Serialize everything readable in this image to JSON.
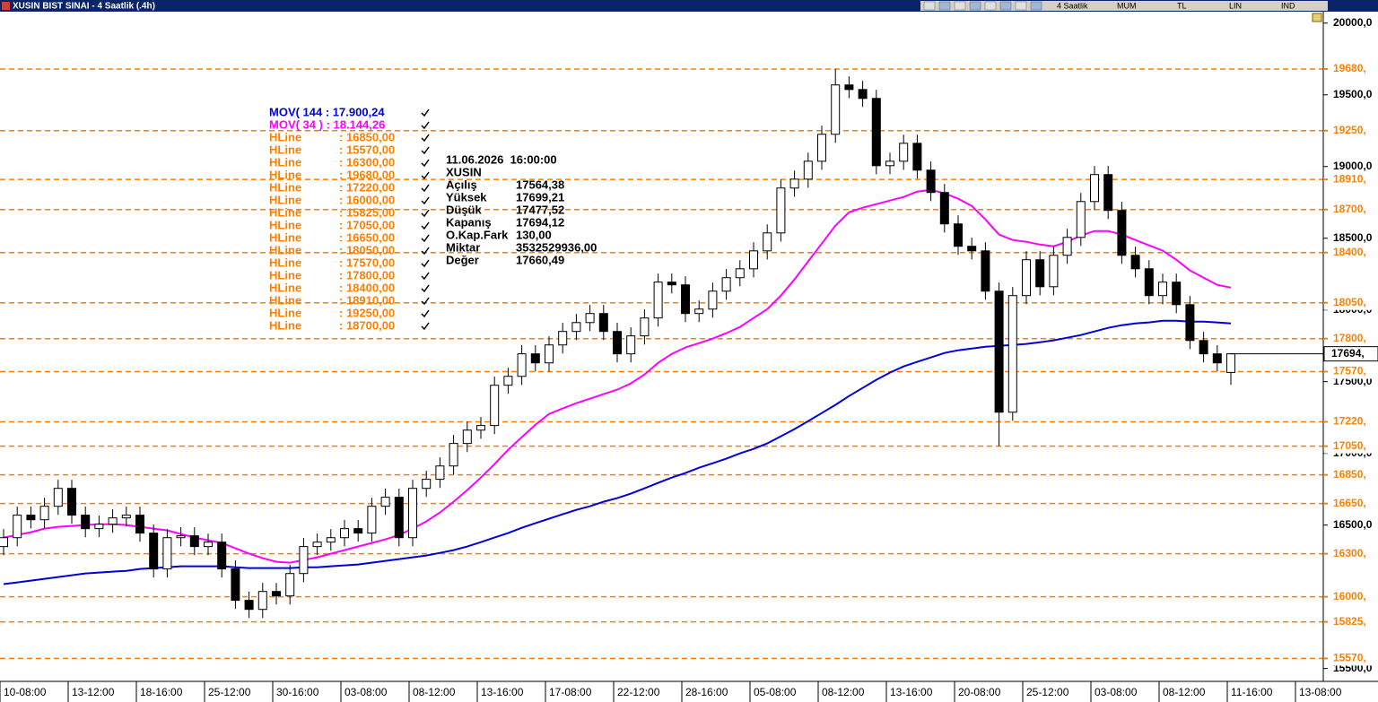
{
  "window": {
    "title": "XUSIN BIST SINAI - 4 Saatlik (.4h)",
    "toolbar": [
      "4 Saatlik",
      "MUM",
      "TL",
      "LIN",
      "IND"
    ]
  },
  "info_panel": {
    "datetime": "11.06.2026  16:00:00",
    "symbol": "XUSIN",
    "rows": [
      [
        "Açılış",
        "17564,38"
      ],
      [
        "Yüksek",
        "17699,21"
      ],
      [
        "Düşük",
        "17477,52"
      ],
      [
        "Kapanış",
        "17694,12"
      ],
      [
        "O.Kap.Fark",
        "130,00"
      ],
      [
        "Miktar",
        "3532529936,00"
      ],
      [
        "Değer",
        "17660,49"
      ]
    ]
  },
  "chart_data": {
    "type": "candlestick",
    "categories": [
      "10-08:00",
      null,
      null,
      null,
      null,
      "13-12:00",
      null,
      null,
      null,
      null,
      "18-16:00",
      null,
      null,
      null,
      null,
      "25-12:00",
      null,
      null,
      null,
      null,
      "30-16:00",
      null,
      null,
      null,
      null,
      "03-08:00",
      null,
      null,
      null,
      null,
      "08-12:00",
      null,
      null,
      null,
      null,
      "13-16:00",
      null,
      null,
      null,
      null,
      "17-08:00",
      null,
      null,
      null,
      null,
      "22-12:00",
      null,
      null,
      null,
      null,
      "28-16:00",
      null,
      null,
      null,
      null,
      "05-08:00",
      null,
      null,
      null,
      null,
      "08-12:00",
      null,
      null,
      null,
      null,
      "13-16:00",
      null,
      null,
      null,
      null,
      "20-08:00",
      null,
      null,
      null,
      null,
      "25-12:00",
      null,
      null,
      null,
      null,
      "03-08:00",
      null,
      null,
      null,
      null,
      "08-12:00",
      null,
      null,
      null,
      null,
      "11-16:00",
      null,
      null,
      null,
      null,
      "13-08:00"
    ],
    "open": [
      16350,
      16412,
      16569,
      16537,
      16631,
      16756,
      16569,
      16475,
      16506,
      16550,
      16569,
      16444,
      16194,
      16412,
      16425,
      16350,
      16381,
      16194,
      15975,
      15912,
      16037,
      16006,
      16162,
      16350,
      16381,
      16412,
      16475,
      16444,
      16631,
      16694,
      16412,
      16756,
      16819,
      16912,
      17069,
      17162,
      17194,
      17475,
      17537,
      17694,
      17631,
      17756,
      17850,
      17912,
      17975,
      17850,
      17694,
      17819,
      17944,
      18194,
      18175,
      17975,
      18006,
      18131,
      18225,
      18287,
      18412,
      18537,
      18850,
      18912,
      19037,
      19225,
      19569,
      19537,
      19475,
      19006,
      19037,
      19162,
      18975,
      18819,
      18600,
      18444,
      18412,
      18131,
      17287,
      18100,
      18350,
      18162,
      18381,
      18506,
      18756,
      18944,
      18694,
      18381,
      18287,
      18100,
      18194,
      18037,
      17787,
      17694,
      17564.38,
      null,
      null,
      null,
      null,
      null
    ],
    "high": [
      16472,
      16629,
      16629,
      16691,
      16816,
      16816,
      16629,
      16566,
      16610,
      16629,
      16629,
      16504,
      16472,
      16485,
      16485,
      16441,
      16441,
      16254,
      16035,
      16097,
      16097,
      16222,
      16410,
      16441,
      16472,
      16535,
      16535,
      16691,
      16754,
      16754,
      16816,
      16879,
      16972,
      17129,
      17222,
      17254,
      17535,
      17597,
      17754,
      17754,
      17816,
      17910,
      17972,
      18035,
      18035,
      17910,
      17879,
      18004,
      18254,
      18254,
      18235,
      18066,
      18191,
      18285,
      18347,
      18472,
      18597,
      18910,
      18972,
      19097,
      19285,
      19680,
      19629,
      19597,
      19535,
      19097,
      19222,
      19222,
      19035,
      18879,
      18660,
      18504,
      18472,
      18191,
      18160,
      18410,
      18410,
      18441,
      18566,
      18816,
      19004,
      19004,
      18754,
      18441,
      18347,
      18254,
      18254,
      18097,
      17847,
      17754,
      17699.21,
      null,
      null,
      null,
      null,
      null
    ],
    "low": [
      16290,
      16352,
      16477,
      16477,
      16571,
      16509,
      16415,
      16415,
      16446,
      16490,
      16384,
      16134,
      16134,
      16352,
      16290,
      16290,
      16134,
      15915,
      15852,
      15852,
      15946,
      15946,
      16102,
      16290,
      16321,
      16352,
      16384,
      16384,
      16571,
      16352,
      16352,
      16696,
      16759,
      16852,
      17009,
      17102,
      17134,
      17415,
      17477,
      17571,
      17571,
      17696,
      17790,
      17852,
      17790,
      17634,
      17634,
      17759,
      17884,
      18115,
      17915,
      17915,
      17946,
      18071,
      18165,
      18227,
      18352,
      18477,
      18790,
      18852,
      18977,
      19165,
      19477,
      19415,
      18946,
      18946,
      18977,
      18915,
      18759,
      18540,
      18384,
      18352,
      18071,
      17050,
      17227,
      18040,
      18102,
      18102,
      18321,
      18446,
      18696,
      18634,
      18321,
      18227,
      18040,
      18040,
      17977,
      17727,
      17634,
      17571,
      17477.52,
      null,
      null,
      null,
      null,
      null
    ],
    "close": [
      16412,
      16569,
      16537,
      16631,
      16756,
      16569,
      16475,
      16506,
      16550,
      16569,
      16444,
      16194,
      16412,
      16425,
      16350,
      16381,
      16194,
      15975,
      15912,
      16037,
      16006,
      16162,
      16350,
      16381,
      16412,
      16475,
      16444,
      16631,
      16694,
      16412,
      16756,
      16819,
      16912,
      17069,
      17162,
      17194,
      17475,
      17537,
      17694,
      17631,
      17756,
      17850,
      17912,
      17975,
      17850,
      17694,
      17819,
      17944,
      18194,
      18175,
      17975,
      18006,
      18131,
      18225,
      18287,
      18412,
      18537,
      18850,
      18912,
      19037,
      19225,
      19569,
      19537,
      19475,
      19006,
      19037,
      19162,
      18975,
      18819,
      18600,
      18444,
      18412,
      18131,
      17287,
      18100,
      18350,
      18162,
      18381,
      18506,
      18756,
      18944,
      18694,
      18381,
      18287,
      18100,
      18194,
      18037,
      17787,
      17694,
      17631,
      17694.12,
      null,
      null,
      null,
      null,
      null
    ],
    "series": [
      {
        "name": "MOV( 144 : 17.900,24",
        "color": "#0000dd",
        "values": [
          16088,
          16100,
          16113,
          16125,
          16138,
          16150,
          16163,
          16169,
          16175,
          16181,
          16194,
          16200,
          16206,
          16213,
          16213,
          16213,
          16213,
          16206,
          16200,
          16200,
          16200,
          16200,
          16206,
          16206,
          16213,
          16219,
          16225,
          16238,
          16250,
          16263,
          16275,
          16288,
          16306,
          16325,
          16350,
          16381,
          16413,
          16444,
          16481,
          16513,
          16544,
          16575,
          16606,
          16631,
          16663,
          16688,
          16719,
          16756,
          16794,
          16831,
          16863,
          16900,
          16931,
          16963,
          17000,
          17031,
          17069,
          17119,
          17169,
          17225,
          17281,
          17338,
          17400,
          17456,
          17513,
          17563,
          17606,
          17638,
          17669,
          17700,
          17719,
          17731,
          17744,
          17750,
          17756,
          17763,
          17775,
          17788,
          17806,
          17825,
          17850,
          17875,
          17894,
          17906,
          17913,
          17925,
          17925,
          17919,
          17919,
          17913,
          17906,
          null,
          null,
          null,
          null,
          null
        ]
      },
      {
        "name": "MOV( 34 ) : 18.144,26",
        "color": "#ff00ff",
        "values": [
          16413,
          16431,
          16450,
          16475,
          16488,
          16494,
          16500,
          16506,
          16506,
          16500,
          16488,
          16475,
          16463,
          16438,
          16413,
          16394,
          16375,
          16338,
          16300,
          16269,
          16244,
          16238,
          16256,
          16275,
          16300,
          16325,
          16350,
          16375,
          16400,
          16431,
          16475,
          16525,
          16588,
          16663,
          16744,
          16831,
          16925,
          17025,
          17113,
          17200,
          17275,
          17313,
          17350,
          17381,
          17413,
          17444,
          17488,
          17550,
          17631,
          17694,
          17738,
          17769,
          17800,
          17838,
          17881,
          17944,
          18006,
          18100,
          18213,
          18338,
          18463,
          18588,
          18681,
          18713,
          18738,
          18763,
          18788,
          18825,
          18838,
          18813,
          18775,
          18725,
          18631,
          18525,
          18488,
          18475,
          18456,
          18444,
          18475,
          18519,
          18550,
          18550,
          18525,
          18488,
          18450,
          18413,
          18350,
          18275,
          18225,
          18175,
          18156,
          null,
          null,
          null,
          null,
          null
        ]
      }
    ],
    "hline_color": "#ff8000",
    "hlines": [
      {
        "name": "HLine",
        "value": 16850,
        "legend_label": ": 16850,00",
        "axis_label": "16850,"
      },
      {
        "name": "HLine",
        "value": 15570,
        "legend_label": ": 15570,00",
        "axis_label": "15570,"
      },
      {
        "name": "HLine",
        "value": 16300,
        "legend_label": ": 16300,00",
        "axis_label": "16300,"
      },
      {
        "name": "HLine",
        "value": 19680,
        "legend_label": ": 19680,00",
        "axis_label": "19680,"
      },
      {
        "name": "HLine",
        "value": 17220,
        "legend_label": ": 17220,00",
        "axis_label": "17220,"
      },
      {
        "name": "HLine",
        "value": 16000,
        "legend_label": ": 16000,00",
        "axis_label": "16000,"
      },
      {
        "name": "HLine",
        "value": 15825,
        "legend_label": ": 15825,00",
        "axis_label": "15825,"
      },
      {
        "name": "HLine",
        "value": 17050,
        "legend_label": ": 17050,00",
        "axis_label": "17050,"
      },
      {
        "name": "HLine",
        "value": 16650,
        "legend_label": ": 16650,00",
        "axis_label": "16650,"
      },
      {
        "name": "HLine",
        "value": 18050,
        "legend_label": ": 18050,00",
        "axis_label": "18050,"
      },
      {
        "name": "HLine",
        "value": 17570,
        "legend_label": ": 17570,00",
        "axis_label": "17570,"
      },
      {
        "name": "HLine",
        "value": 17800,
        "legend_label": ": 17800,00",
        "axis_label": "17800,"
      },
      {
        "name": "HLine",
        "value": 18400,
        "legend_label": ": 18400,00",
        "axis_label": "18400,"
      },
      {
        "name": "HLine",
        "value": 18910,
        "legend_label": ": 18910,00",
        "axis_label": "18910,"
      },
      {
        "name": "HLine",
        "value": 19250,
        "legend_label": ": 19250,00",
        "axis_label": "19250,"
      },
      {
        "name": "HLine",
        "value": 18700,
        "legend_label": ": 18700,00",
        "axis_label": "18700,"
      }
    ],
    "last_price": {
      "value": 17694.12,
      "label": "17694,"
    },
    "ylim": [
      15410,
      20080
    ],
    "yticks": [
      {
        "value": 15500,
        "label": "15500,0"
      },
      {
        "value": 16000,
        "label": "16000,0"
      },
      {
        "value": 16500,
        "label": "16500,0"
      },
      {
        "value": 17000,
        "label": "17000,0"
      },
      {
        "value": 17500,
        "label": "17500,0"
      },
      {
        "value": 18000,
        "label": "18000,0"
      },
      {
        "value": 18500,
        "label": "18500,0"
      },
      {
        "value": 19000,
        "label": "19000,0"
      },
      {
        "value": 19500,
        "label": "19500,0"
      },
      {
        "value": 20000,
        "label": "20000,0"
      }
    ]
  }
}
